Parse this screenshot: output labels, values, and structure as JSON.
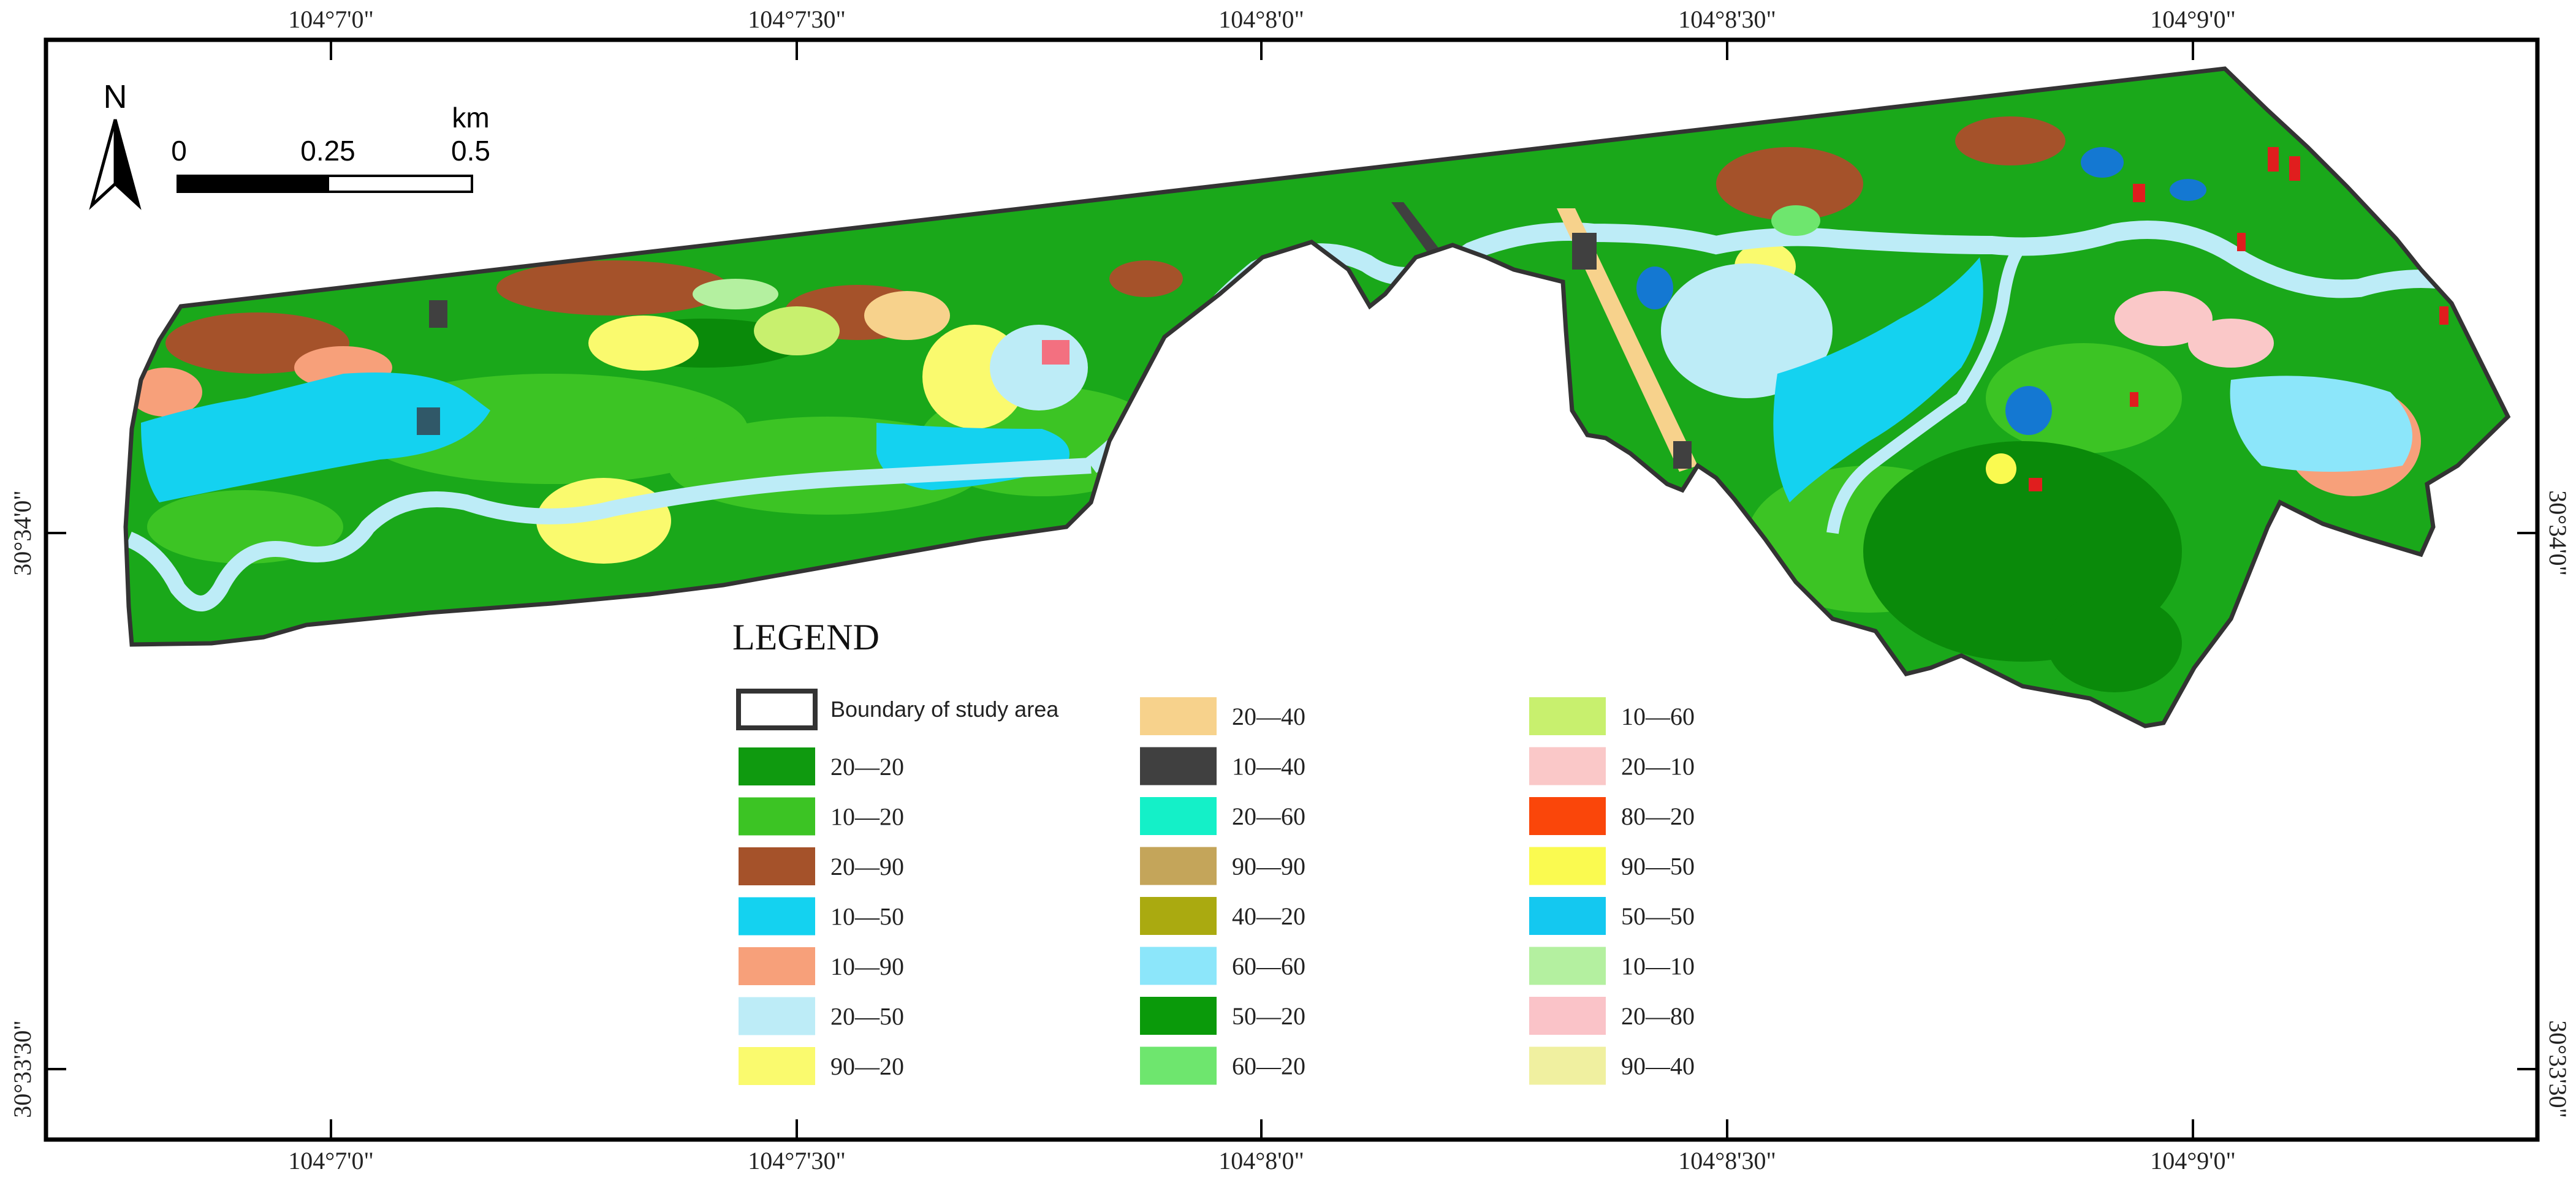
{
  "map": {
    "longitude_labels": [
      "104°7'0\"",
      "104°7'30\"",
      "104°8'0\"",
      "104°8'30\"",
      "104°9'0\""
    ],
    "latitude_labels": [
      "30°34'0\"",
      "30°33'30\""
    ],
    "north_arrow_label": "N",
    "scale_bar": {
      "unit": "km",
      "ticks": [
        "0",
        "0.25",
        "0.5"
      ]
    }
  },
  "legend": {
    "title": "LEGEND",
    "boundary_label": "Boundary of study area",
    "entries": [
      {
        "label": "20—20",
        "color": "#0f9a0f"
      },
      {
        "label": "10—20",
        "color": "#3cc424"
      },
      {
        "label": "20—90",
        "color": "#a5522a"
      },
      {
        "label": "10—50",
        "color": "#14d2f0"
      },
      {
        "label": "10—90",
        "color": "#f7a07a"
      },
      {
        "label": "20—50",
        "color": "#bdecf7"
      },
      {
        "label": "90—20",
        "color": "#fafa6e"
      },
      {
        "label": "20—40",
        "color": "#f7d28c"
      },
      {
        "label": "10—40",
        "color": "#404040"
      },
      {
        "label": "20—60",
        "color": "#14f0c8"
      },
      {
        "label": "90—90",
        "color": "#c4a55a"
      },
      {
        "label": "40—20",
        "color": "#aaaa10"
      },
      {
        "label": "60—60",
        "color": "#8ce6fa"
      },
      {
        "label": "50—20",
        "color": "#0a9a0a"
      },
      {
        "label": "60—20",
        "color": "#6ee66e"
      },
      {
        "label": "10—60",
        "color": "#c8f06e"
      },
      {
        "label": "20—10",
        "color": "#fac8c8"
      },
      {
        "label": "80—20",
        "color": "#fa460a"
      },
      {
        "label": "90—50",
        "color": "#fafa50"
      },
      {
        "label": "50—50",
        "color": "#14c8f0"
      },
      {
        "label": "10—10",
        "color": "#b4f0a0"
      },
      {
        "label": "20—80",
        "color": "#fac3c8"
      },
      {
        "label": "90—40",
        "color": "#f0f0a0"
      }
    ]
  }
}
